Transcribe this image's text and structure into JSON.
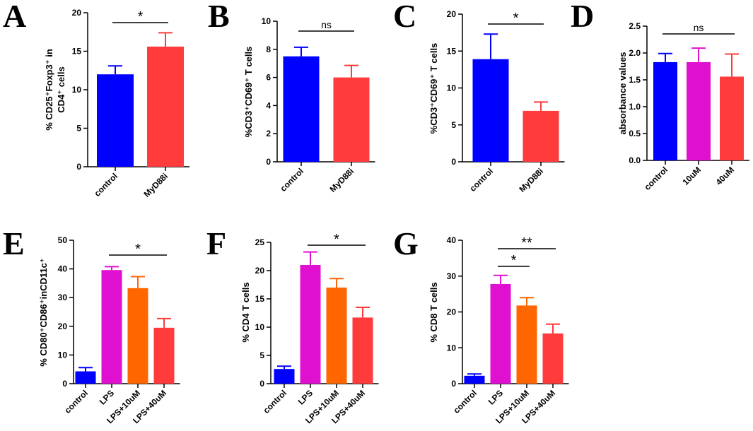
{
  "chart_data": [
    {
      "panel": "A",
      "type": "bar",
      "categories": [
        "control",
        "MyD88i"
      ],
      "values": [
        12.0,
        15.6
      ],
      "errors": [
        1.1,
        1.8
      ],
      "colors": [
        "#0000FF",
        "#FF3B3B"
      ],
      "ylim": [
        0,
        20
      ],
      "yticks": [
        "0",
        "5",
        "10",
        "15",
        "20"
      ],
      "ylabel_lines": [
        "% CD25⁺Foxp3⁺ in",
        "CD4⁺ cells"
      ],
      "significance": [
        {
          "from": 0,
          "to": 1,
          "label": "*"
        }
      ]
    },
    {
      "panel": "B",
      "type": "bar",
      "categories": [
        "control",
        "MyD88i"
      ],
      "values": [
        7.5,
        6.0
      ],
      "errors": [
        0.65,
        0.85
      ],
      "colors": [
        "#0000FF",
        "#FF3B3B"
      ],
      "ylim": [
        0,
        10
      ],
      "yticks": [
        "0",
        "2",
        "4",
        "6",
        "8",
        "10"
      ],
      "ylabel_lines": [
        "%CD3⁺CD69⁺ T cells"
      ],
      "significance": [
        {
          "from": 0,
          "to": 1,
          "label": "ns"
        }
      ]
    },
    {
      "panel": "C",
      "type": "bar",
      "categories": [
        "control",
        "MyD88i"
      ],
      "values": [
        13.9,
        6.9
      ],
      "errors": [
        3.4,
        1.2
      ],
      "colors": [
        "#0000FF",
        "#FF3B3B"
      ],
      "ylim": [
        0,
        20
      ],
      "yticks": [
        "0",
        "5",
        "10",
        "15",
        "20"
      ],
      "ylabel_lines": [
        "%CD3⁺CD69⁺ T cells"
      ],
      "significance": [
        {
          "from": 0,
          "to": 1,
          "label": "*"
        }
      ]
    },
    {
      "panel": "D",
      "type": "bar",
      "categories": [
        "control",
        "10uM",
        "40uM"
      ],
      "values": [
        1.83,
        1.83,
        1.56
      ],
      "errors": [
        0.16,
        0.26,
        0.42
      ],
      "colors": [
        "#0000FF",
        "#E010D0",
        "#FF3B3B"
      ],
      "ylim": [
        0,
        2.5
      ],
      "yticks": [
        "0.0",
        "0.5",
        "1.0",
        "1.5",
        "2.0",
        "2.5"
      ],
      "ylabel_lines": [
        "absorbance values"
      ],
      "significance": [
        {
          "from": 0,
          "to": 2,
          "label": "ns"
        }
      ]
    },
    {
      "panel": "E",
      "type": "bar",
      "categories": [
        "control",
        "LPS",
        "LPS+10uM",
        "LPS+40uM"
      ],
      "values": [
        4.3,
        39.6,
        33.3,
        19.5
      ],
      "errors": [
        1.3,
        1.2,
        4.0,
        3.2
      ],
      "colors": [
        "#0000FF",
        "#E010D0",
        "#FF6600",
        "#FF3B3B"
      ],
      "ylim": [
        0,
        50
      ],
      "yticks": [
        "0",
        "10",
        "20",
        "30",
        "40",
        "50"
      ],
      "ylabel_lines": [
        "% CD80⁺CD86⁺inCD11c⁺"
      ],
      "significance": [
        {
          "from": 1,
          "to": 3,
          "label": "*"
        }
      ]
    },
    {
      "panel": "F",
      "type": "bar",
      "categories": [
        "control",
        "LPS",
        "LPS+10uM",
        "LPS+40uM"
      ],
      "values": [
        2.6,
        21.0,
        17.0,
        11.7
      ],
      "errors": [
        0.5,
        2.3,
        1.6,
        1.8
      ],
      "colors": [
        "#0000FF",
        "#E010D0",
        "#FF6600",
        "#FF3B3B"
      ],
      "ylim": [
        0,
        25
      ],
      "yticks": [
        "0",
        "5",
        "10",
        "15",
        "20",
        "25"
      ],
      "ylabel_lines": [
        "% CD4 T cells"
      ],
      "significance": [
        {
          "from": 1,
          "to": 3,
          "label": "*"
        }
      ]
    },
    {
      "panel": "G",
      "type": "bar",
      "categories": [
        "control",
        "LPS",
        "LPS+10uM",
        "LPS+40uM"
      ],
      "values": [
        2.2,
        27.8,
        21.8,
        14.0
      ],
      "errors": [
        0.5,
        2.4,
        2.2,
        2.6
      ],
      "colors": [
        "#0000FF",
        "#E010D0",
        "#FF6600",
        "#FF3B3B"
      ],
      "ylim": [
        0,
        40
      ],
      "yticks": [
        "0",
        "10",
        "20",
        "30",
        "40"
      ],
      "ylabel_lines": [
        "% CD8 T cells"
      ],
      "significance": [
        {
          "from": 1,
          "to": 2,
          "label": "*"
        },
        {
          "from": 1,
          "to": 3,
          "label": "**"
        }
      ]
    }
  ]
}
